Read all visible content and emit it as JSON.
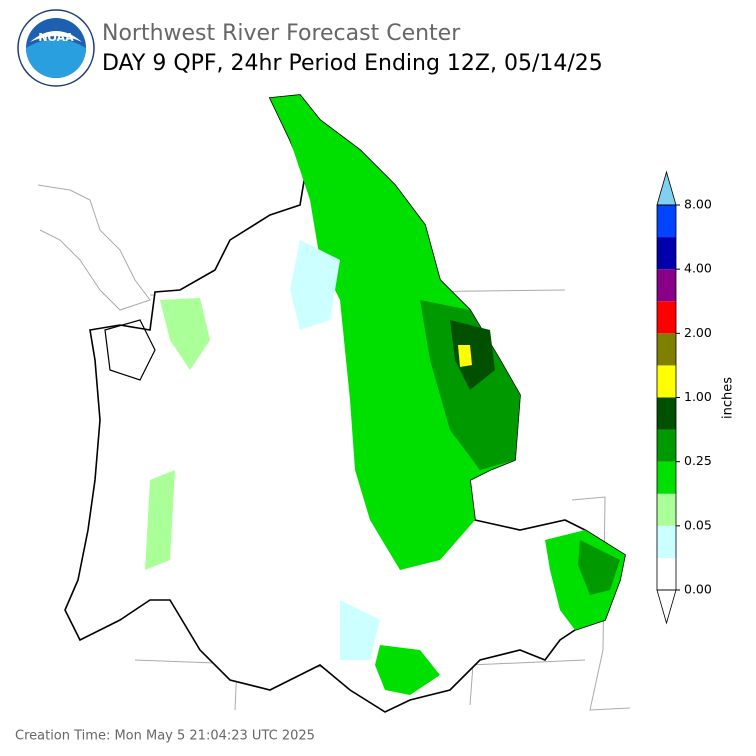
{
  "logo": {
    "text": "NOAA"
  },
  "header": {
    "org": "Northwest River Forecast Center",
    "title": "DAY 9 QPF, 24hr Period Ending 12Z, 05/14/25"
  },
  "colorbar": {
    "label": "inches",
    "ticks": [
      "0.00",
      "0.05",
      "0.25",
      "1.00",
      "2.00",
      "4.00",
      "8.00"
    ],
    "colors": [
      "#ffffff",
      "#ccffff",
      "#aaff99",
      "#00e000",
      "#009900",
      "#005000",
      "#ffff00",
      "#808000",
      "#ff0000",
      "#880088",
      "#0000aa",
      "#0044ff"
    ],
    "under_color": "#ffffff",
    "over_color": "#80d0f0"
  },
  "footer": {
    "creation_time": "Creation Time: Mon May 5 21:04:23 UTC 2025"
  }
}
